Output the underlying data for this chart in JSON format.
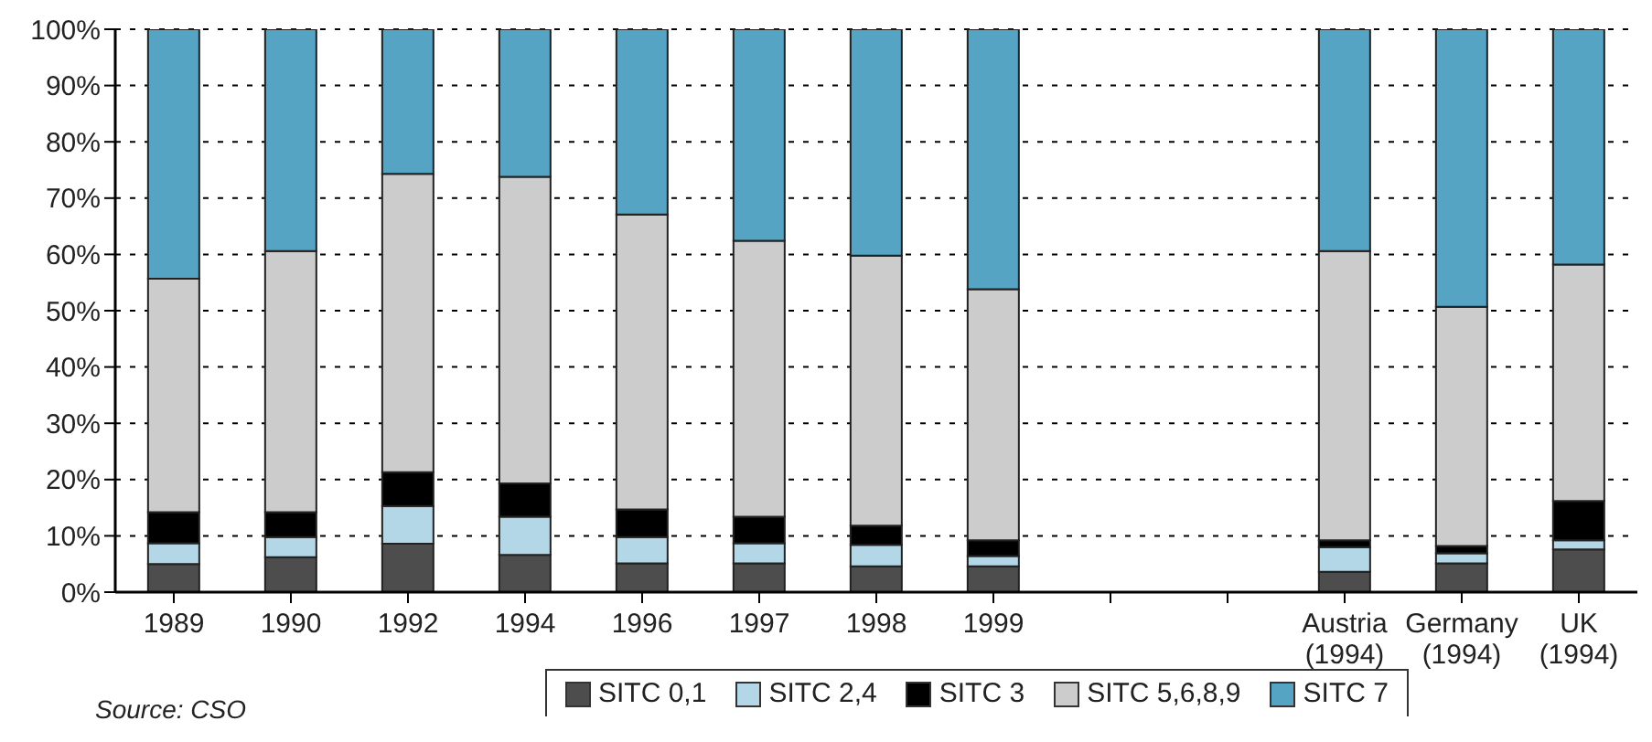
{
  "chart_data": {
    "type": "bar",
    "stacked": true,
    "categories": [
      "1989",
      "1990",
      "1992",
      "1994",
      "1996",
      "1997",
      "1998",
      "1999",
      null,
      null,
      "Austria\n(1994)",
      "Germany\n(1994)",
      "UK\n(1994)"
    ],
    "series": [
      {
        "name": "SITC 0,1",
        "color": "#4d4d4d",
        "values": [
          5,
          6.2,
          8.6,
          6.6,
          5.1,
          5.1,
          4.6,
          4.6,
          null,
          null,
          3.6,
          5.1,
          7.6
        ]
      },
      {
        "name": "SITC 2,4",
        "color": "#b3d7e6",
        "values": [
          3.7,
          3.6,
          6.7,
          6.8,
          4.7,
          3.6,
          3.8,
          1.8,
          null,
          null,
          4.4,
          1.8,
          1.6
        ]
      },
      {
        "name": "SITC 3",
        "color": "#000000",
        "values": [
          5.5,
          4.4,
          6,
          5.9,
          4.9,
          4.7,
          3.4,
          2.8,
          null,
          null,
          1.2,
          1.3,
          7
        ]
      },
      {
        "name": "SITC 5,6,8,9",
        "color": "#cccccc",
        "values": [
          41.5,
          46.4,
          53,
          54.5,
          52.4,
          49,
          48,
          44.6,
          null,
          null,
          51.4,
          42.5,
          42
        ]
      },
      {
        "name": "SITC 7",
        "color": "#55a4c4",
        "values": [
          44.3,
          39.4,
          25.7,
          26.2,
          32.9,
          37.6,
          40.2,
          46.2,
          null,
          null,
          39.4,
          49.3,
          41.8
        ]
      }
    ],
    "ylim": [
      0,
      100
    ],
    "yticks": [
      {
        "value": 0,
        "label": "0%"
      },
      {
        "value": 10,
        "label": "10%"
      },
      {
        "value": 20,
        "label": "20%"
      },
      {
        "value": 30,
        "label": "30%"
      },
      {
        "value": 40,
        "label": "40%"
      },
      {
        "value": 50,
        "label": "50%"
      },
      {
        "value": 60,
        "label": "60%"
      },
      {
        "value": 70,
        "label": "70%"
      },
      {
        "value": 80,
        "label": "80%"
      },
      {
        "value": 90,
        "label": "90%"
      },
      {
        "value": 100,
        "label": "100%"
      }
    ],
    "grid": "y",
    "legend": "bottom",
    "annotations": [
      "Source: CSO"
    ]
  }
}
